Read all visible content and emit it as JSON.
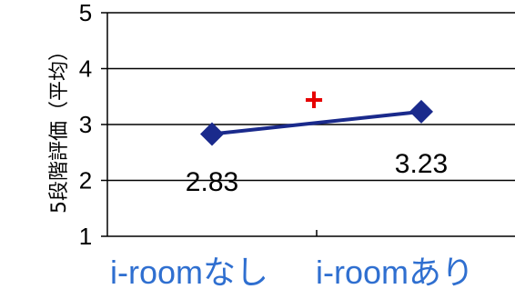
{
  "chart_data": {
    "type": "line",
    "title": "",
    "xlabel": "",
    "ylabel": "5段階評価（平均）",
    "categories": [
      "i-roomなし",
      "i-roomあり"
    ],
    "series": [
      {
        "values": [
          2.83,
          3.23
        ],
        "data_labels": [
          "2.83",
          "3.23"
        ]
      }
    ],
    "ylim": [
      1,
      5
    ],
    "yticks": [
      1,
      2,
      3,
      4,
      5
    ],
    "ytick_labels": [
      "1",
      "2",
      "3",
      "4",
      "5"
    ],
    "grid": true,
    "legend": "none",
    "annotation": "+",
    "colors": {
      "line": "#1a2a8c",
      "marker": "#1a2a8c",
      "grid": "#000000",
      "annotation": "#e60000",
      "category_text": "#2f6fd0"
    }
  }
}
